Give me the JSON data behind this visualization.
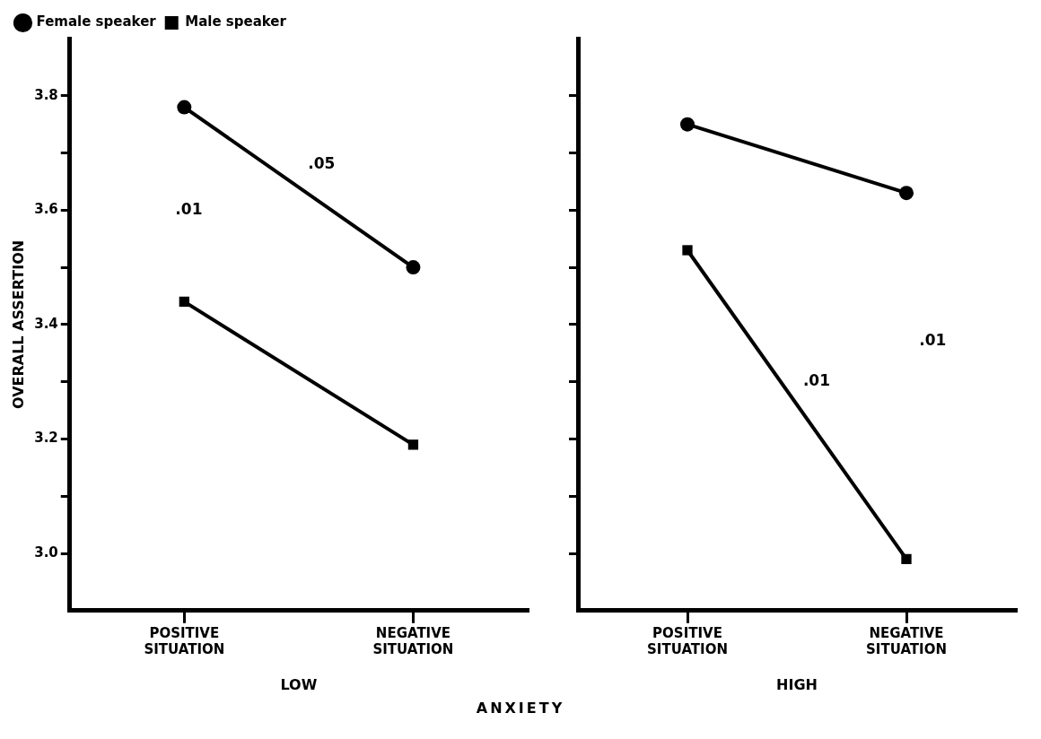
{
  "chart_data": [
    {
      "type": "line",
      "categories": [
        "POSITIVE SITUATION",
        "NEGATIVE SITUATION"
      ],
      "xlabel": "LOW",
      "ylabel": "OVERALL ASSERTION",
      "ylim": [
        2.9,
        3.9
      ],
      "yticks": [
        {
          "value": 3.0,
          "label": "3.0"
        },
        {
          "value": 3.1,
          "label": null
        },
        {
          "value": 3.2,
          "label": "3.2"
        },
        {
          "value": 3.3,
          "label": null
        },
        {
          "value": 3.4,
          "label": "3.4"
        },
        {
          "value": 3.5,
          "label": null
        },
        {
          "value": 3.6,
          "label": "3.6"
        },
        {
          "value": 3.7,
          "label": null
        },
        {
          "value": 3.8,
          "label": "3.8"
        }
      ],
      "legend": "top left",
      "series": [
        {
          "name": "Female speaker",
          "color": "#000000",
          "marker": "circle",
          "values": [
            3.78,
            3.5
          ]
        },
        {
          "name": "Male speaker",
          "color": "#000000",
          "marker": "square",
          "values": [
            3.44,
            3.19
          ]
        }
      ],
      "annotations": [
        ".01",
        ".05",
        "ANXIETY"
      ]
    },
    {
      "type": "line",
      "categories": [
        "POSITIVE SITUATION",
        "NEGATIVE SITUATION"
      ],
      "xlabel": "HIGH",
      "ylim": [
        2.9,
        3.9
      ],
      "yticks": [
        {
          "value": 3.0,
          "label": null
        },
        {
          "value": 3.1,
          "label": null
        },
        {
          "value": 3.2,
          "label": null
        },
        {
          "value": 3.3,
          "label": null
        },
        {
          "value": 3.4,
          "label": null
        },
        {
          "value": 3.5,
          "label": null
        },
        {
          "value": 3.6,
          "label": null
        },
        {
          "value": 3.7,
          "label": null
        },
        {
          "value": 3.8,
          "label": null
        }
      ],
      "tick_labels": "x",
      "series": [
        {
          "color": "#000000",
          "marker": "circle",
          "values": [
            3.75,
            3.63
          ]
        },
        {
          "color": "#000000",
          "marker": "square",
          "values": [
            3.53,
            2.99
          ]
        }
      ],
      "annotations": [
        ".01",
        ".01"
      ]
    }
  ]
}
